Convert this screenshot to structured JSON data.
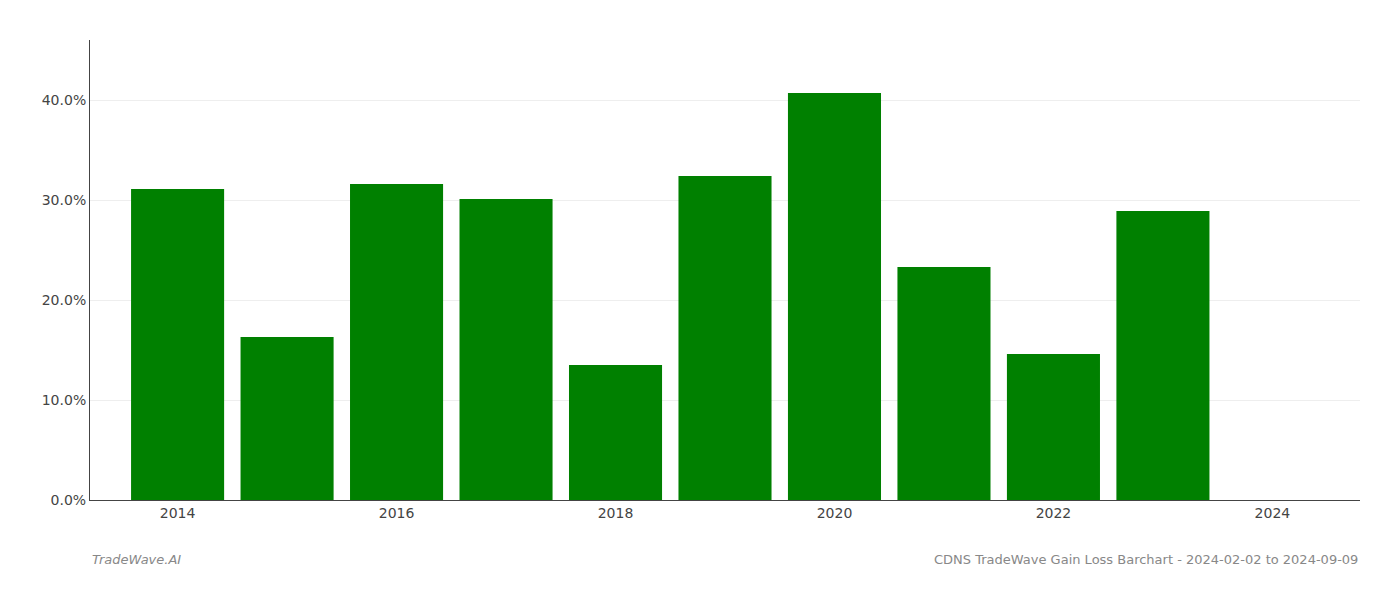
{
  "chart_data": {
    "type": "bar",
    "x": [
      2014,
      2015,
      2016,
      2017,
      2018,
      2019,
      2020,
      2021,
      2022,
      2023
    ],
    "values": [
      0.311,
      0.163,
      0.316,
      0.301,
      0.135,
      0.324,
      0.407,
      0.233,
      0.146,
      0.289
    ],
    "color": "#008000",
    "xlim": [
      2013.2,
      2024.8
    ],
    "xticks": [
      2014,
      2016,
      2018,
      2020,
      2022,
      2024
    ],
    "ylim": [
      0.0,
      0.46
    ],
    "yticks": [
      {
        "value": 0.0,
        "label": "0.0%"
      },
      {
        "value": 0.1,
        "label": "10.0%"
      },
      {
        "value": 0.2,
        "label": "20.0%"
      },
      {
        "value": 0.3,
        "label": "30.0%"
      },
      {
        "value": 0.4,
        "label": "40.0%"
      }
    ],
    "grid": true,
    "annotations": [
      "TradeWave.AI",
      "CDNS TradeWave Gain Loss Barchart - 2024-02-02 to 2024-09-09"
    ]
  }
}
